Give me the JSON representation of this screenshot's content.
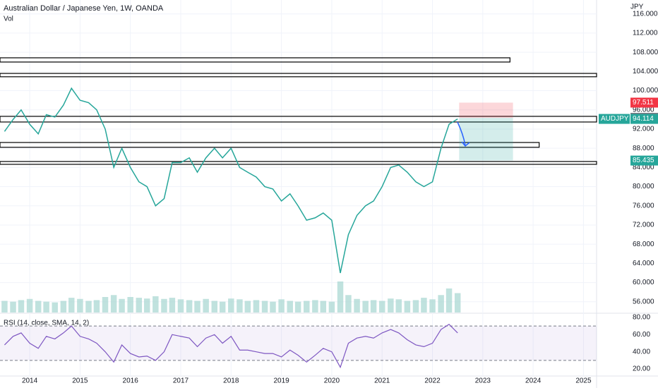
{
  "chart_data": {
    "type": "line",
    "title": "Australian Dollar / Japanese Yen, 1W, OANDA",
    "subtitle": "Vol",
    "y_unit": "JPY",
    "symbol": "AUDJPY",
    "color": "#26a69a",
    "x": [
      2013.5,
      2013.67,
      2013.83,
      2014.0,
      2014.17,
      2014.33,
      2014.5,
      2014.67,
      2014.83,
      2015.0,
      2015.17,
      2015.33,
      2015.5,
      2015.67,
      2015.83,
      2016.0,
      2016.17,
      2016.33,
      2016.5,
      2016.67,
      2016.83,
      2017.0,
      2017.17,
      2017.33,
      2017.5,
      2017.67,
      2017.83,
      2018.0,
      2018.17,
      2018.33,
      2018.5,
      2018.67,
      2018.83,
      2019.0,
      2019.17,
      2019.33,
      2019.5,
      2019.67,
      2019.83,
      2020.0,
      2020.17,
      2020.33,
      2020.5,
      2020.67,
      2020.83,
      2021.0,
      2021.17,
      2021.33,
      2021.5,
      2021.67,
      2021.83,
      2022.0,
      2022.17,
      2022.33,
      2022.5
    ],
    "values": [
      91.5,
      94,
      96,
      93,
      91,
      95,
      94.5,
      97,
      100.5,
      98,
      97.5,
      96,
      92,
      84,
      88,
      84,
      81,
      80,
      76,
      77.5,
      85,
      85,
      86,
      83,
      86,
      88,
      86,
      88,
      84,
      83,
      82,
      80,
      79.5,
      77,
      78.5,
      76,
      73,
      73.5,
      74.5,
      73,
      62,
      70,
      74,
      76,
      77,
      80,
      84,
      84.5,
      83,
      81,
      80,
      81,
      88,
      93,
      94.1
    ],
    "xlim": [
      2013.41,
      2025.19
    ],
    "xticks": [
      2014,
      2015,
      2016,
      2017,
      2018,
      2019,
      2020,
      2021,
      2022,
      2023,
      2024,
      2025
    ],
    "ylim": [
      53.76,
      118.9
    ],
    "yticks": [
      {
        "value": 116,
        "label": "116.000"
      },
      {
        "value": 112,
        "label": "112.000"
      },
      {
        "value": 108,
        "label": "108.000"
      },
      {
        "value": 104,
        "label": "104.000"
      },
      {
        "value": 100,
        "label": "100.000"
      },
      {
        "value": 96,
        "label": "96.000"
      },
      {
        "value": 92,
        "label": "92.000"
      },
      {
        "value": 88,
        "label": "88.000"
      },
      {
        "value": 84,
        "label": "84.000"
      },
      {
        "value": 80,
        "label": "80.000"
      },
      {
        "value": 76,
        "label": "76.000"
      },
      {
        "value": 72,
        "label": "72.000"
      },
      {
        "value": 68,
        "label": "68.000"
      },
      {
        "value": 64,
        "label": "64.000"
      },
      {
        "value": 60,
        "label": "60.000"
      },
      {
        "value": 56,
        "label": "56.000"
      }
    ],
    "grid": true,
    "zones": [
      {
        "top": 106.85,
        "bottom": 105.97,
        "x_end": 2023.54
      },
      {
        "top": 103.6,
        "bottom": 102.9
      },
      {
        "top": 94.65,
        "bottom": 93.47
      },
      {
        "top": 89.2,
        "bottom": 88.2,
        "x_end": 2024.12
      },
      {
        "top": 85.24,
        "bottom": 84.65
      }
    ],
    "position": {
      "stop": 97.511,
      "entry": 94.345,
      "target": 85.435,
      "x": [
        2022.53,
        2023.6
      ]
    },
    "last": 94.114,
    "volume": {
      "color": "#a5d6d0",
      "ylim": [
        0,
        100
      ],
      "values": [
        30,
        28,
        32,
        35,
        30,
        28,
        26,
        30,
        38,
        35,
        30,
        32,
        40,
        45,
        35,
        40,
        38,
        36,
        42,
        35,
        38,
        34,
        32,
        30,
        35,
        30,
        28,
        36,
        34,
        30,
        32,
        30,
        28,
        34,
        30,
        28,
        30,
        32,
        30,
        28,
        80,
        45,
        35,
        30,
        32,
        30,
        36,
        34,
        30,
        32,
        38,
        34,
        45,
        62,
        50
      ]
    },
    "rsi": {
      "title": "RSI (14, close, SMA, 14, 2)",
      "color": "#7e57c2",
      "ylim": [
        11.8,
        84.1
      ],
      "band": [
        30,
        70
      ],
      "yticks": [
        {
          "value": 80,
          "label": "80.00"
        },
        {
          "value": 60,
          "label": "60.00"
        },
        {
          "value": 40,
          "label": "40.00"
        },
        {
          "value": 20,
          "label": "20.00"
        }
      ],
      "values": [
        48,
        58,
        62,
        50,
        44,
        58,
        55,
        62,
        70,
        58,
        55,
        50,
        40,
        28,
        48,
        38,
        34,
        35,
        30,
        40,
        60,
        58,
        56,
        46,
        56,
        60,
        50,
        58,
        42,
        42,
        40,
        38,
        38,
        34,
        42,
        36,
        28,
        36,
        44,
        40,
        22,
        50,
        56,
        58,
        56,
        62,
        66,
        62,
        54,
        48,
        46,
        50,
        66,
        72,
        62
      ]
    }
  }
}
